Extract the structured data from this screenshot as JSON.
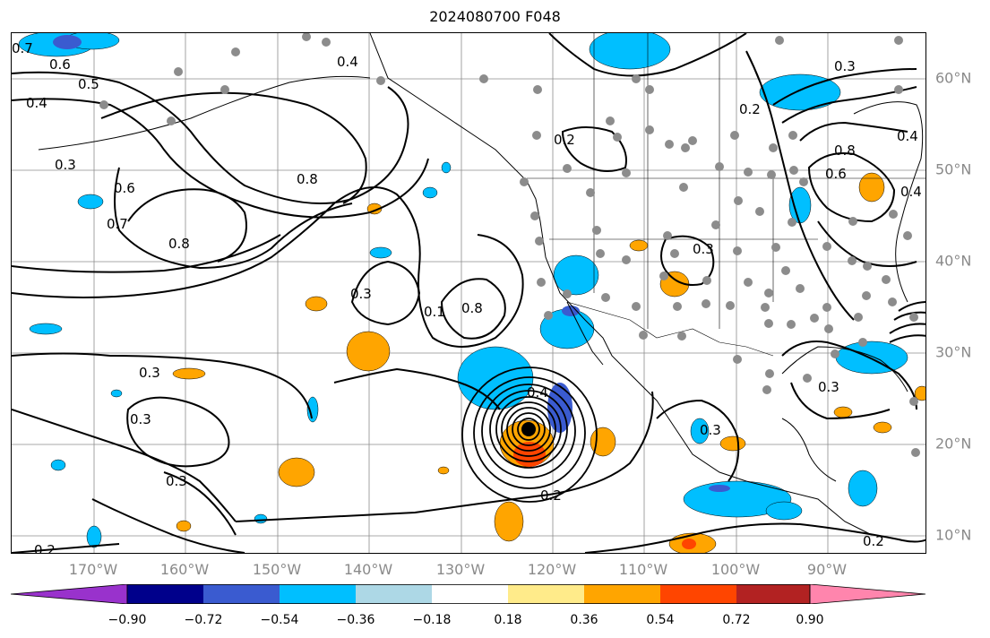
{
  "title": "2024080700 F048",
  "map": {
    "lon_labels": [
      "170°W",
      "160°W",
      "150°W",
      "140°W",
      "130°W",
      "120°W",
      "110°W",
      "100°W",
      "90°W"
    ],
    "lat_labels": [
      "60°N",
      "50°N",
      "40°N",
      "30°N",
      "20°N",
      "10°N"
    ],
    "contour_labels": [
      "0.7",
      "0.6",
      "0.5",
      "0.4",
      "0.4",
      "0.3",
      "0.6",
      "0.7",
      "0.8",
      "0.8",
      "0.3",
      "0.1",
      "0.8",
      "0.3",
      "0.3",
      "0.3",
      "0.4",
      "0.2",
      "0.2",
      "0.2",
      "0.3",
      "0.3",
      "0.2",
      "0.3",
      "0.8",
      "0.6",
      "0.4",
      "0.4",
      "0.2",
      "0.3"
    ],
    "colors": {
      "contour": "#000000",
      "station_dot": "#8c8c8c",
      "negative_fill": "#00bfff",
      "strong_negative_fill": "#3a5bd0",
      "positive_fill": "#ffa500",
      "strong_positive_fill": "#ff4500",
      "gridline": "#8c8c8c"
    }
  },
  "colorbar": {
    "ticks": [
      "−0.90",
      "−0.72",
      "−0.54",
      "−0.36",
      "−0.18",
      "0.18",
      "0.36",
      "0.54",
      "0.72",
      "0.90"
    ],
    "colors": [
      "#9932cc",
      "#00008b",
      "#3a5bd0",
      "#00bfff",
      "#add8e6",
      "#ffffff",
      "#ffeb8a",
      "#ffa500",
      "#ff4500",
      "#b22222",
      "#ff85ad"
    ]
  }
}
